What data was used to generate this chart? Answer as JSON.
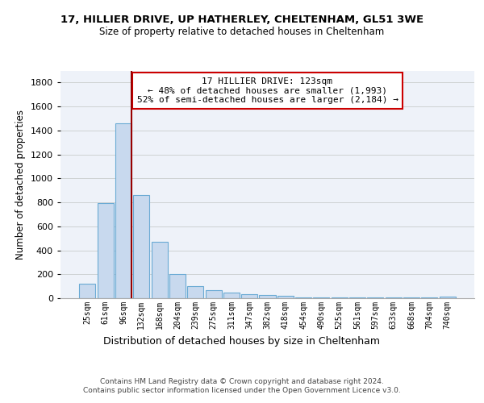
{
  "title_line1": "17, HILLIER DRIVE, UP HATHERLEY, CHELTENHAM, GL51 3WE",
  "title_line2": "Size of property relative to detached houses in Cheltenham",
  "xlabel": "Distribution of detached houses by size in Cheltenham",
  "ylabel": "Number of detached properties",
  "bar_color": "#c8d9ee",
  "bar_edge_color": "#6aaad4",
  "annotation_box_color": "#cc0000",
  "vline_color": "#990000",
  "annotation_title": "17 HILLIER DRIVE: 123sqm",
  "annotation_line1": "← 48% of detached houses are smaller (1,993)",
  "annotation_line2": "52% of semi-detached houses are larger (2,184) →",
  "categories": [
    "25sqm",
    "61sqm",
    "96sqm",
    "132sqm",
    "168sqm",
    "204sqm",
    "239sqm",
    "275sqm",
    "311sqm",
    "347sqm",
    "382sqm",
    "418sqm",
    "454sqm",
    "490sqm",
    "525sqm",
    "561sqm",
    "597sqm",
    "633sqm",
    "668sqm",
    "704sqm",
    "740sqm"
  ],
  "values": [
    120,
    795,
    1460,
    860,
    470,
    200,
    100,
    65,
    50,
    35,
    30,
    20,
    10,
    5,
    5,
    5,
    5,
    5,
    5,
    5,
    15
  ],
  "ylim": [
    0,
    1900
  ],
  "yticks": [
    0,
    200,
    400,
    600,
    800,
    1000,
    1200,
    1400,
    1600,
    1800
  ],
  "footer_line1": "Contains HM Land Registry data © Crown copyright and database right 2024.",
  "footer_line2": "Contains public sector information licensed under the Open Government Licence v3.0.",
  "bg_color": "#eef2f9",
  "grid_color": "#c8cccc"
}
